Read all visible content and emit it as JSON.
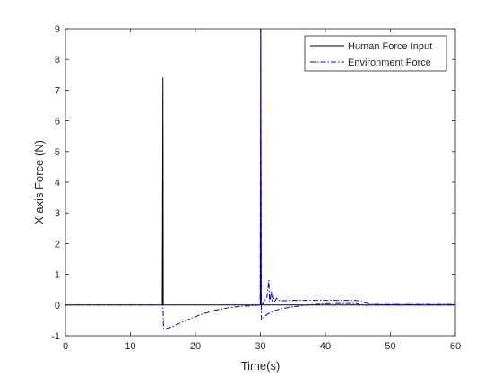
{
  "chart_data": {
    "type": "line",
    "xlabel": "Time(s)",
    "ylabel": "X axis Force (N)",
    "xlim": [
      0,
      60
    ],
    "ylim": [
      -1,
      9
    ],
    "x_ticks": [
      0,
      10,
      20,
      30,
      40,
      50,
      60
    ],
    "y_ticks": [
      -1,
      0,
      1,
      2,
      3,
      4,
      5,
      6,
      7,
      8,
      9
    ],
    "grid": false,
    "legend": "top-right",
    "series": [
      {
        "name": "Human Force Input",
        "color": "#000000",
        "style": "solid",
        "points": [
          [
            0,
            0
          ],
          [
            14.9,
            0
          ],
          [
            15.0,
            7.4
          ],
          [
            15.05,
            0
          ],
          [
            30.0,
            0
          ],
          [
            30.05,
            9.0
          ],
          [
            30.1,
            0
          ],
          [
            60,
            0
          ]
        ]
      },
      {
        "name": "Environment Force",
        "color": "#0000ff",
        "style": "dashdot",
        "points": [
          [
            0,
            0
          ],
          [
            15.0,
            0
          ],
          [
            15.1,
            -0.78
          ],
          [
            15.5,
            -0.77
          ],
          [
            16.5,
            -0.7
          ],
          [
            17.5,
            -0.6
          ],
          [
            19,
            -0.46
          ],
          [
            21,
            -0.3
          ],
          [
            23,
            -0.17
          ],
          [
            25,
            -0.09
          ],
          [
            27,
            -0.04
          ],
          [
            29,
            -0.02
          ],
          [
            29.95,
            0
          ],
          [
            30.05,
            9.0
          ],
          [
            30.15,
            -0.48
          ],
          [
            30.6,
            -0.38
          ],
          [
            31.2,
            -0.28
          ],
          [
            32,
            -0.2
          ],
          [
            33,
            -0.13
          ],
          [
            34.5,
            -0.07
          ],
          [
            36,
            -0.03
          ],
          [
            38,
            0.02
          ],
          [
            40,
            0.04
          ],
          [
            42,
            0.05
          ],
          [
            44,
            0.05
          ],
          [
            45,
            0.04
          ],
          [
            45.2,
            0
          ],
          [
            46,
            0
          ],
          [
            47,
            0
          ],
          [
            60,
            0
          ]
        ]
      },
      {
        "name": "",
        "color": "#0000ff",
        "style": "dashdot",
        "points": [
          [
            29.9,
            0.02
          ],
          [
            30.3,
            0.02
          ],
          [
            30.6,
            0.12
          ],
          [
            31.0,
            0.25
          ],
          [
            31.3,
            0.8
          ],
          [
            31.4,
            0.1
          ],
          [
            31.7,
            0.45
          ],
          [
            31.8,
            0.1
          ],
          [
            32.0,
            0.3
          ],
          [
            32.2,
            0.12
          ],
          [
            32.5,
            0.22
          ],
          [
            32.8,
            0.15
          ],
          [
            33.5,
            0.14
          ],
          [
            35,
            0.15
          ],
          [
            40,
            0.15
          ],
          [
            44.5,
            0.15
          ],
          [
            45,
            0.14
          ],
          [
            45.5,
            0.12
          ],
          [
            46,
            0.08
          ],
          [
            46.5,
            0.05
          ],
          [
            47.2,
            0.02
          ],
          [
            60,
            0.02
          ]
        ]
      }
    ]
  }
}
